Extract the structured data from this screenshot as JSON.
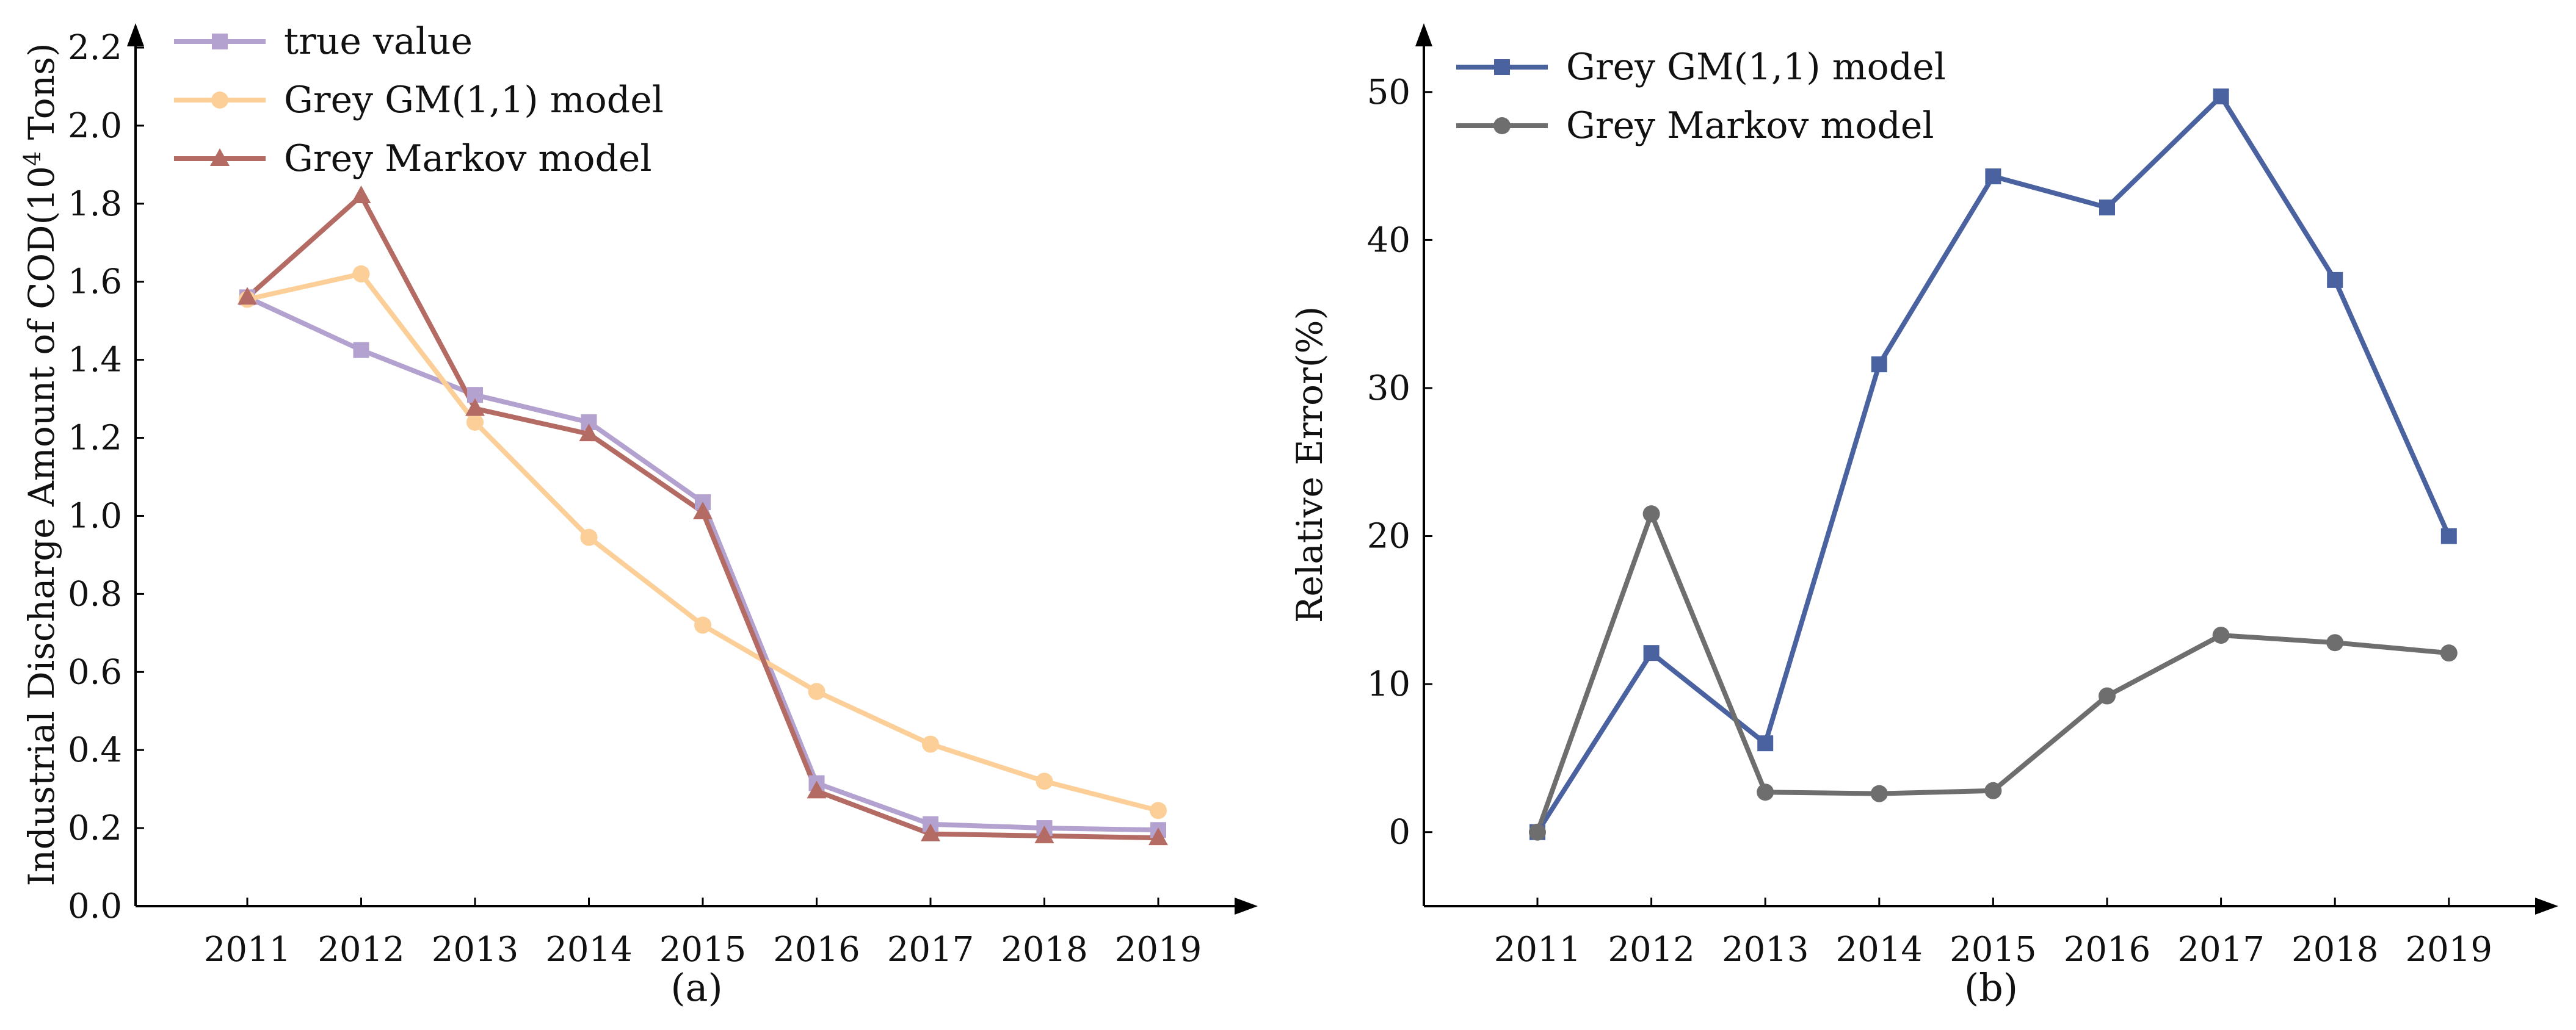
{
  "colors": {
    "true_value": "#b3a2cf",
    "gm11_a": "#fbcf97",
    "markov_a": "#b46b63",
    "gm11_b": "#4a62a0",
    "markov_b": "#6e6e6e",
    "axis": "#000000"
  },
  "chart_data": [
    {
      "type": "line",
      "caption": "(a)",
      "categories": [
        "2011",
        "2012",
        "2013",
        "2014",
        "2015",
        "2016",
        "2017",
        "2018",
        "2019"
      ],
      "ylabel_main": "Industrial Discharge Amount of COD(10",
      "ylabel_sup": "4",
      "ylabel_tail": " Tons)",
      "xlabel": "",
      "ylim": [
        0,
        2.2
      ],
      "yticks": [
        "0.0",
        "0.2",
        "0.4",
        "0.6",
        "0.8",
        "1.0",
        "1.2",
        "1.4",
        "1.6",
        "1.8",
        "2.0",
        "2.2"
      ],
      "legend_position": "top-left",
      "grid": false,
      "series": [
        {
          "name": "true value",
          "color": "#b3a2cf",
          "marker": "square",
          "values": [
            1.56,
            1.425,
            1.31,
            1.24,
            1.035,
            0.315,
            0.21,
            0.2,
            0.195
          ]
        },
        {
          "name": "Grey GM(1,1) model",
          "color": "#fbcf97",
          "marker": "circle",
          "values": [
            1.555,
            1.62,
            1.24,
            0.945,
            0.72,
            0.55,
            0.415,
            0.32,
            0.245
          ]
        },
        {
          "name": "Grey Markov model",
          "color": "#b46b63",
          "marker": "triangle",
          "values": [
            1.56,
            1.82,
            1.275,
            1.21,
            1.01,
            0.295,
            0.185,
            0.18,
            0.175
          ]
        }
      ]
    },
    {
      "type": "line",
      "caption": "(b)",
      "categories": [
        "2011",
        "2012",
        "2013",
        "2014",
        "2015",
        "2016",
        "2017",
        "2018",
        "2019"
      ],
      "ylabel": "Relative Error(%)",
      "xlabel": "",
      "ylim": [
        -5,
        53
      ],
      "yticks": [
        "0",
        "10",
        "20",
        "30",
        "40",
        "50"
      ],
      "legend_position": "top-left",
      "grid": false,
      "series": [
        {
          "name": "Grey GM(1,1) model",
          "color": "#4a62a0",
          "marker": "square",
          "values": [
            0,
            12.1,
            6,
            31.6,
            44.3,
            42.2,
            49.7,
            37.3,
            20
          ]
        },
        {
          "name": "Grey Markov model",
          "color": "#6e6e6e",
          "marker": "circle",
          "values": [
            0,
            21.5,
            2.7,
            2.6,
            2.8,
            9.2,
            13.3,
            12.8,
            12.1
          ]
        }
      ]
    }
  ]
}
